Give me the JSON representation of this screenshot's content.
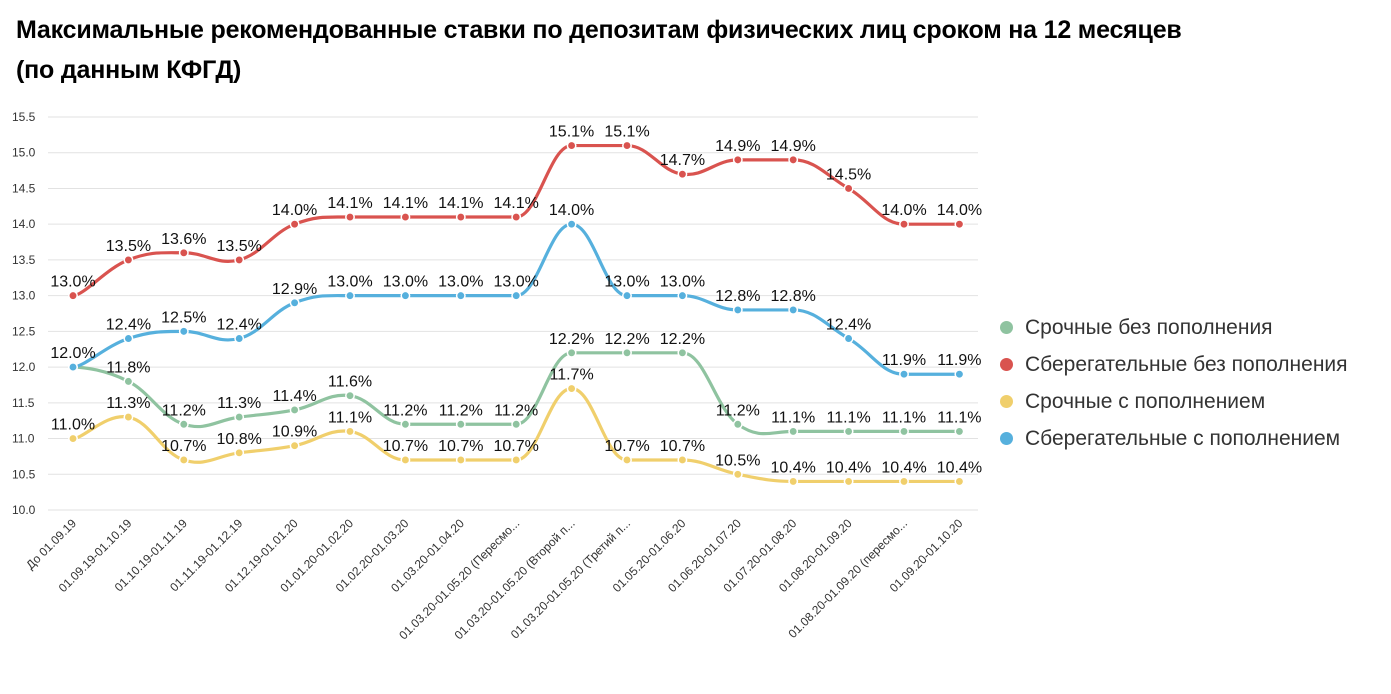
{
  "title_line1": "Максимальные рекомендованные ставки по депозитам физических лиц сроком на 12 месяцев",
  "title_line2": "(по данным КФГД)",
  "chart_data": {
    "type": "line",
    "categories": [
      "До 01.09.19",
      "01.09.19-01.10.19",
      "01.10.19-01.11.19",
      "01.11.19-01.12.19",
      "01.12.19-01.01.20",
      "01.01.20-01.02.20",
      "01.02.20-01.03.20",
      "01.03.20-01.04.20",
      "01.03.20-01.05.20 (Пересмо...",
      "01.03.20-01.05.20 (Второй п...",
      "01.03.20-01.05.20 (Третий п...",
      "01.05.20-01.06.20",
      "01.06.20-01.07.20",
      "01.07.20-01.08.20",
      "01.08.20-01.09.20",
      "01.08.20-01.09.20 (пересмо...",
      "01.09.20-01.10.20"
    ],
    "series": [
      {
        "name": "Срочные без пополнения",
        "color": "#8fc3a0",
        "values": [
          12.0,
          11.8,
          11.2,
          11.3,
          11.4,
          11.6,
          11.2,
          11.2,
          11.2,
          12.2,
          12.2,
          12.2,
          11.2,
          11.1,
          11.1,
          11.1,
          11.1
        ],
        "labels": [
          "",
          "11.8%",
          "11.2%",
          "11.3%",
          "11.4%",
          "11.6%",
          "11.2%",
          "11.2%",
          "11.2%",
          "12.2%",
          "12.2%",
          "12.2%",
          "11.2%",
          "11.1%",
          "11.1%",
          "11.1%",
          "11.1%"
        ]
      },
      {
        "name": "Сберегательные без пополнения",
        "color": "#d9534f",
        "values": [
          13.0,
          13.5,
          13.6,
          13.5,
          14.0,
          14.1,
          14.1,
          14.1,
          14.1,
          15.1,
          15.1,
          14.7,
          14.9,
          14.9,
          14.5,
          14.0,
          14.0
        ],
        "labels": [
          "13.0%",
          "13.5%",
          "13.6%",
          "13.5%",
          "14.0%",
          "14.1%",
          "14.1%",
          "14.1%",
          "14.1%",
          "15.1%",
          "15.1%",
          "14.7%",
          "14.9%",
          "14.9%",
          "14.5%",
          "14.0%",
          "14.0%"
        ]
      },
      {
        "name": "Срочные с пополнением",
        "color": "#f0cf6c",
        "values": [
          11.0,
          11.3,
          10.7,
          10.8,
          10.9,
          11.1,
          10.7,
          10.7,
          10.7,
          11.7,
          10.7,
          10.7,
          10.5,
          10.4,
          10.4,
          10.4,
          10.4
        ],
        "labels": [
          "11.0%",
          "11.3%",
          "10.7%",
          "10.8%",
          "10.9%",
          "11.1%",
          "10.7%",
          "10.7%",
          "10.7%",
          "11.7%",
          "10.7%",
          "10.7%",
          "10.5%",
          "10.4%",
          "10.4%",
          "10.4%",
          "10.4%"
        ]
      },
      {
        "name": "Сберегательные с пополнением",
        "color": "#56b0dd",
        "values": [
          12.0,
          12.4,
          12.5,
          12.4,
          12.9,
          13.0,
          13.0,
          13.0,
          13.0,
          14.0,
          13.0,
          13.0,
          12.8,
          12.8,
          12.4,
          11.9,
          11.9
        ],
        "labels": [
          "12.0%",
          "12.4%",
          "12.5%",
          "12.4%",
          "12.9%",
          "13.0%",
          "13.0%",
          "13.0%",
          "13.0%",
          "14.0%",
          "13.0%",
          "13.0%",
          "12.8%",
          "12.8%",
          "12.4%",
          "11.9%",
          "11.9%"
        ]
      }
    ],
    "ylim": [
      10.0,
      15.5
    ],
    "yticks": [
      "10.0",
      "10.5",
      "11.0",
      "11.5",
      "12.0",
      "12.5",
      "13.0",
      "13.5",
      "14.0",
      "14.5",
      "15.0",
      "15.5"
    ],
    "grid": true,
    "legend_position": "right"
  }
}
